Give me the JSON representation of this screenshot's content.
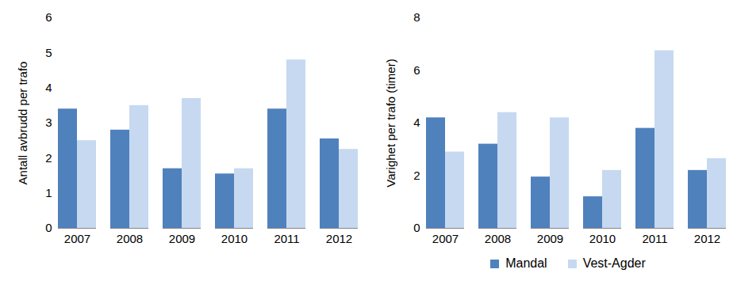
{
  "chart_data": [
    {
      "type": "bar",
      "y_label": "Antall avbrudd per trafo",
      "categories": [
        "2007",
        "2008",
        "2009",
        "2010",
        "2011",
        "2012"
      ],
      "series": [
        {
          "name": "Mandal",
          "color": "#4f81bd",
          "values": [
            3.4,
            2.8,
            1.7,
            1.55,
            3.4,
            2.55
          ]
        },
        {
          "name": "Vest-Agder",
          "color": "#c6d9f1",
          "values": [
            2.5,
            3.5,
            3.7,
            1.7,
            4.8,
            2.25
          ]
        }
      ],
      "ylim": [
        0,
        6
      ],
      "yticks": [
        0,
        1,
        2,
        3,
        4,
        5,
        6
      ],
      "grid": false
    },
    {
      "type": "bar",
      "y_label": "Varighet per trafo (timer)",
      "categories": [
        "2007",
        "2008",
        "2009",
        "2010",
        "2011",
        "2012"
      ],
      "series": [
        {
          "name": "Mandal",
          "color": "#4f81bd",
          "values": [
            4.2,
            3.2,
            1.95,
            1.2,
            3.8,
            2.2
          ]
        },
        {
          "name": "Vest-Agder",
          "color": "#c6d9f1",
          "values": [
            2.9,
            4.4,
            4.2,
            2.2,
            6.75,
            2.65
          ]
        }
      ],
      "ylim": [
        0,
        8
      ],
      "yticks": [
        0,
        2,
        4,
        6,
        8
      ],
      "grid": false,
      "legend": "bottom"
    }
  ]
}
